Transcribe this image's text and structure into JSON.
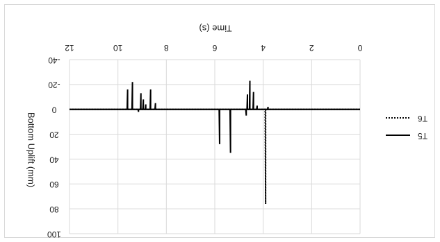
{
  "chart_data": {
    "type": "line",
    "orientation_note": "mirrored",
    "xlabel": "Time (s)",
    "ylabel": "Bottom Uplift (mm)",
    "x_ticks": [
      "0",
      "2",
      "4",
      "6",
      "8",
      "10",
      "12"
    ],
    "y_ticks": [
      "-40",
      "-20",
      "0",
      "20",
      "40",
      "60",
      "80",
      "100"
    ],
    "xlim": [
      0,
      12
    ],
    "ylim": [
      -40,
      100
    ],
    "y_inverted": true,
    "grid": true,
    "legend": "right",
    "series": [
      {
        "name": "T6",
        "style": "dotted",
        "color": "#000000",
        "points": [
          [
            0,
            0
          ],
          [
            3.9,
            0
          ],
          [
            3.9,
            76
          ],
          [
            3.92,
            0
          ],
          [
            12,
            0
          ]
        ]
      },
      {
        "name": "T5",
        "style": "solid",
        "color": "#000000",
        "points": [
          [
            0,
            0
          ],
          [
            3.8,
            0
          ],
          [
            3.8,
            -2
          ],
          [
            3.82,
            0
          ],
          [
            4.25,
            0
          ],
          [
            4.25,
            -3
          ],
          [
            4.27,
            0
          ],
          [
            4.4,
            0
          ],
          [
            4.4,
            -14
          ],
          [
            4.42,
            0
          ],
          [
            4.55,
            0
          ],
          [
            4.55,
            -23
          ],
          [
            4.57,
            0
          ],
          [
            4.65,
            0
          ],
          [
            4.65,
            -12
          ],
          [
            4.67,
            0
          ],
          [
            4.7,
            0
          ],
          [
            4.7,
            5
          ],
          [
            4.72,
            0
          ],
          [
            5.35,
            0
          ],
          [
            5.35,
            35
          ],
          [
            5.37,
            0
          ],
          [
            5.8,
            0
          ],
          [
            5.8,
            28
          ],
          [
            5.82,
            0
          ],
          [
            8.45,
            0
          ],
          [
            8.45,
            -5
          ],
          [
            8.47,
            0
          ],
          [
            8.65,
            0
          ],
          [
            8.65,
            -16
          ],
          [
            8.67,
            0
          ],
          [
            8.85,
            0
          ],
          [
            8.85,
            -4
          ],
          [
            8.87,
            0
          ],
          [
            8.95,
            0
          ],
          [
            8.95,
            -8
          ],
          [
            8.97,
            0
          ],
          [
            9.05,
            0
          ],
          [
            9.05,
            -13
          ],
          [
            9.07,
            0
          ],
          [
            9.15,
            0
          ],
          [
            9.15,
            2
          ],
          [
            9.17,
            0
          ],
          [
            9.4,
            0
          ],
          [
            9.4,
            -22
          ],
          [
            9.42,
            0
          ],
          [
            9.6,
            0
          ],
          [
            9.6,
            -16
          ],
          [
            9.62,
            0
          ],
          [
            12,
            0
          ]
        ]
      }
    ]
  }
}
